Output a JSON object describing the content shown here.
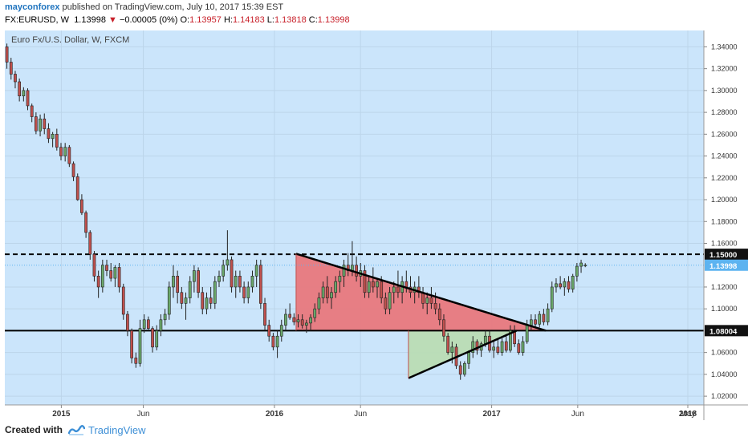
{
  "header": {
    "author": "mayconforex",
    "published_text": "published on TradingView.com, July 10, 2017 15:39 EST",
    "symbol": "FX:EURUSD, W",
    "last_price": "1.13998",
    "change_arrow": "▼",
    "change": "−0.00005 (0%)",
    "open_label": "O:",
    "open": "1.13957",
    "high_label": "H:",
    "high": "1.14183",
    "low_label": "L:",
    "low": "1.13818",
    "close_label": "C:",
    "close": "1.13998"
  },
  "footer": {
    "created_with": "Created with",
    "brand": "TradingView"
  },
  "colors": {
    "chart_bg": "#cbe5fb",
    "bull": "#6aa76a",
    "bear": "#c0504d",
    "red_fill": "#e8787d",
    "green_fill": "#b9dcb4",
    "level_label_bg": "#111111",
    "price_label_bg": "#5cb3f0",
    "down_red": "#c8202a"
  },
  "chart_data": {
    "type": "candlestick",
    "title": "Euro Fx/U.S. Dollar, W, FXCM",
    "x_ticks": [
      "2015",
      "Jun",
      "2016",
      "Jun",
      "2017",
      "Jun",
      "2018",
      "May"
    ],
    "x_ticks_bold": [
      "2015",
      "2016",
      "2017",
      "2018"
    ],
    "y_ticks": [
      "1.34000",
      "1.32000",
      "1.30000",
      "1.28000",
      "1.26000",
      "1.24000",
      "1.22000",
      "1.20000",
      "1.18000",
      "1.16000",
      "1.15000",
      "1.13998",
      "1.12000",
      "1.10000",
      "1.08004",
      "1.06000",
      "1.04000",
      "1.02000"
    ],
    "ylim": [
      1.012,
      1.355
    ],
    "x_range_weeks": [
      0,
      168
    ],
    "levels": [
      {
        "name": "resistance",
        "price": 1.15,
        "label": "1.15000",
        "style": "dashed"
      },
      {
        "name": "support",
        "price": 1.08004,
        "label": "1.08004",
        "style": "solid"
      },
      {
        "name": "last-price",
        "price": 1.13998,
        "label": "1.13998",
        "style": "dotted"
      }
    ],
    "triangles": [
      {
        "name": "descending-triangle",
        "fill": "red",
        "points": [
          [
            70,
            1.1505
          ],
          [
            130,
            1.08004
          ],
          [
            70,
            1.08004
          ]
        ]
      },
      {
        "name": "ascending-triangle",
        "fill": "green",
        "points": [
          [
            97,
            1.0365
          ],
          [
            123,
            1.08004
          ],
          [
            97,
            1.08004
          ]
        ]
      }
    ],
    "trendlines": [
      {
        "name": "upper-trendline",
        "from": [
          70,
          1.1505
        ],
        "to": [
          130,
          1.08004
        ]
      },
      {
        "name": "lower-trendline",
        "from": [
          97,
          1.0365
        ],
        "to": [
          123,
          1.08004
        ]
      }
    ],
    "candles": [
      {
        "o": 1.34,
        "h": 1.343,
        "l": 1.32,
        "c": 1.326
      },
      {
        "o": 1.326,
        "h": 1.33,
        "l": 1.31,
        "c": 1.315
      },
      {
        "o": 1.315,
        "h": 1.318,
        "l": 1.302,
        "c": 1.308
      },
      {
        "o": 1.308,
        "h": 1.311,
        "l": 1.29,
        "c": 1.295
      },
      {
        "o": 1.295,
        "h": 1.303,
        "l": 1.29,
        "c": 1.3
      },
      {
        "o": 1.3,
        "h": 1.302,
        "l": 1.282,
        "c": 1.286
      },
      {
        "o": 1.286,
        "h": 1.288,
        "l": 1.271,
        "c": 1.276
      },
      {
        "o": 1.276,
        "h": 1.28,
        "l": 1.26,
        "c": 1.263
      },
      {
        "o": 1.263,
        "h": 1.278,
        "l": 1.258,
        "c": 1.274
      },
      {
        "o": 1.274,
        "h": 1.279,
        "l": 1.26,
        "c": 1.265
      },
      {
        "o": 1.265,
        "h": 1.27,
        "l": 1.252,
        "c": 1.256
      },
      {
        "o": 1.256,
        "h": 1.262,
        "l": 1.248,
        "c": 1.26
      },
      {
        "o": 1.26,
        "h": 1.265,
        "l": 1.245,
        "c": 1.248
      },
      {
        "o": 1.248,
        "h": 1.252,
        "l": 1.236,
        "c": 1.24
      },
      {
        "o": 1.24,
        "h": 1.252,
        "l": 1.235,
        "c": 1.248
      },
      {
        "o": 1.248,
        "h": 1.25,
        "l": 1.23,
        "c": 1.233
      },
      {
        "o": 1.233,
        "h": 1.235,
        "l": 1.217,
        "c": 1.221
      },
      {
        "o": 1.221,
        "h": 1.224,
        "l": 1.199,
        "c": 1.2
      },
      {
        "o": 1.2,
        "h": 1.205,
        "l": 1.186,
        "c": 1.188
      },
      {
        "o": 1.188,
        "h": 1.19,
        "l": 1.165,
        "c": 1.17
      },
      {
        "o": 1.17,
        "h": 1.172,
        "l": 1.145,
        "c": 1.15
      },
      {
        "o": 1.15,
        "h": 1.153,
        "l": 1.125,
        "c": 1.13
      },
      {
        "o": 1.13,
        "h": 1.135,
        "l": 1.11,
        "c": 1.12
      },
      {
        "o": 1.12,
        "h": 1.145,
        "l": 1.115,
        "c": 1.14
      },
      {
        "o": 1.14,
        "h": 1.145,
        "l": 1.13,
        "c": 1.135
      },
      {
        "o": 1.135,
        "h": 1.142,
        "l": 1.125,
        "c": 1.128
      },
      {
        "o": 1.128,
        "h": 1.14,
        "l": 1.12,
        "c": 1.138
      },
      {
        "o": 1.138,
        "h": 1.142,
        "l": 1.115,
        "c": 1.12
      },
      {
        "o": 1.12,
        "h": 1.123,
        "l": 1.09,
        "c": 1.095
      },
      {
        "o": 1.095,
        "h": 1.098,
        "l": 1.075,
        "c": 1.08
      },
      {
        "o": 1.08,
        "h": 1.082,
        "l": 1.05,
        "c": 1.055
      },
      {
        "o": 1.055,
        "h": 1.06,
        "l": 1.046,
        "c": 1.05
      },
      {
        "o": 1.05,
        "h": 1.09,
        "l": 1.047,
        "c": 1.082
      },
      {
        "o": 1.082,
        "h": 1.095,
        "l": 1.078,
        "c": 1.09
      },
      {
        "o": 1.09,
        "h": 1.093,
        "l": 1.08,
        "c": 1.082
      },
      {
        "o": 1.082,
        "h": 1.084,
        "l": 1.06,
        "c": 1.065
      },
      {
        "o": 1.065,
        "h": 1.085,
        "l": 1.062,
        "c": 1.08
      },
      {
        "o": 1.08,
        "h": 1.095,
        "l": 1.075,
        "c": 1.09
      },
      {
        "o": 1.09,
        "h": 1.1,
        "l": 1.085,
        "c": 1.095
      },
      {
        "o": 1.095,
        "h": 1.125,
        "l": 1.09,
        "c": 1.12
      },
      {
        "o": 1.12,
        "h": 1.14,
        "l": 1.11,
        "c": 1.13
      },
      {
        "o": 1.13,
        "h": 1.135,
        "l": 1.105,
        "c": 1.115
      },
      {
        "o": 1.115,
        "h": 1.12,
        "l": 1.1,
        "c": 1.105
      },
      {
        "o": 1.105,
        "h": 1.115,
        "l": 1.09,
        "c": 1.11
      },
      {
        "o": 1.11,
        "h": 1.13,
        "l": 1.105,
        "c": 1.125
      },
      {
        "o": 1.125,
        "h": 1.14,
        "l": 1.115,
        "c": 1.135
      },
      {
        "o": 1.135,
        "h": 1.138,
        "l": 1.11,
        "c": 1.115
      },
      {
        "o": 1.115,
        "h": 1.12,
        "l": 1.095,
        "c": 1.1
      },
      {
        "o": 1.1,
        "h": 1.115,
        "l": 1.095,
        "c": 1.11
      },
      {
        "o": 1.11,
        "h": 1.12,
        "l": 1.1,
        "c": 1.105
      },
      {
        "o": 1.105,
        "h": 1.13,
        "l": 1.1,
        "c": 1.125
      },
      {
        "o": 1.125,
        "h": 1.135,
        "l": 1.12,
        "c": 1.13
      },
      {
        "o": 1.13,
        "h": 1.145,
        "l": 1.125,
        "c": 1.14
      },
      {
        "o": 1.14,
        "h": 1.172,
        "l": 1.135,
        "c": 1.145
      },
      {
        "o": 1.145,
        "h": 1.148,
        "l": 1.115,
        "c": 1.12
      },
      {
        "o": 1.12,
        "h": 1.135,
        "l": 1.11,
        "c": 1.13
      },
      {
        "o": 1.13,
        "h": 1.135,
        "l": 1.115,
        "c": 1.12
      },
      {
        "o": 1.12,
        "h": 1.125,
        "l": 1.105,
        "c": 1.11
      },
      {
        "o": 1.11,
        "h": 1.125,
        "l": 1.105,
        "c": 1.12
      },
      {
        "o": 1.12,
        "h": 1.135,
        "l": 1.115,
        "c": 1.13
      },
      {
        "o": 1.13,
        "h": 1.145,
        "l": 1.12,
        "c": 1.14
      },
      {
        "o": 1.14,
        "h": 1.145,
        "l": 1.1,
        "c": 1.105
      },
      {
        "o": 1.105,
        "h": 1.11,
        "l": 1.08,
        "c": 1.085
      },
      {
        "o": 1.085,
        "h": 1.09,
        "l": 1.07,
        "c": 1.075
      },
      {
        "o": 1.075,
        "h": 1.078,
        "l": 1.062,
        "c": 1.065
      },
      {
        "o": 1.065,
        "h": 1.08,
        "l": 1.055,
        "c": 1.075
      },
      {
        "o": 1.075,
        "h": 1.09,
        "l": 1.07,
        "c": 1.085
      },
      {
        "o": 1.085,
        "h": 1.1,
        "l": 1.08,
        "c": 1.095
      },
      {
        "o": 1.095,
        "h": 1.105,
        "l": 1.09,
        "c": 1.092
      },
      {
        "o": 1.092,
        "h": 1.096,
        "l": 1.085,
        "c": 1.088
      },
      {
        "o": 1.088,
        "h": 1.095,
        "l": 1.083,
        "c": 1.09
      },
      {
        "o": 1.09,
        "h": 1.095,
        "l": 1.082,
        "c": 1.085
      },
      {
        "o": 1.085,
        "h": 1.09,
        "l": 1.078,
        "c": 1.087
      },
      {
        "o": 1.087,
        "h": 1.095,
        "l": 1.08,
        "c": 1.092
      },
      {
        "o": 1.092,
        "h": 1.105,
        "l": 1.088,
        "c": 1.1
      },
      {
        "o": 1.1,
        "h": 1.115,
        "l": 1.095,
        "c": 1.11
      },
      {
        "o": 1.11,
        "h": 1.125,
        "l": 1.105,
        "c": 1.12
      },
      {
        "o": 1.12,
        "h": 1.13,
        "l": 1.105,
        "c": 1.11
      },
      {
        "o": 1.11,
        "h": 1.12,
        "l": 1.1,
        "c": 1.115
      },
      {
        "o": 1.115,
        "h": 1.13,
        "l": 1.11,
        "c": 1.125
      },
      {
        "o": 1.125,
        "h": 1.135,
        "l": 1.115,
        "c": 1.13
      },
      {
        "o": 1.13,
        "h": 1.145,
        "l": 1.12,
        "c": 1.14
      },
      {
        "o": 1.14,
        "h": 1.151,
        "l": 1.13,
        "c": 1.135
      },
      {
        "o": 1.135,
        "h": 1.162,
        "l": 1.13,
        "c": 1.14
      },
      {
        "o": 1.14,
        "h": 1.148,
        "l": 1.125,
        "c": 1.13
      },
      {
        "o": 1.13,
        "h": 1.142,
        "l": 1.12,
        "c": 1.135
      },
      {
        "o": 1.135,
        "h": 1.14,
        "l": 1.11,
        "c": 1.115
      },
      {
        "o": 1.115,
        "h": 1.13,
        "l": 1.11,
        "c": 1.125
      },
      {
        "o": 1.125,
        "h": 1.138,
        "l": 1.115,
        "c": 1.12
      },
      {
        "o": 1.12,
        "h": 1.128,
        "l": 1.11,
        "c": 1.125
      },
      {
        "o": 1.125,
        "h": 1.13,
        "l": 1.105,
        "c": 1.11
      },
      {
        "o": 1.11,
        "h": 1.115,
        "l": 1.095,
        "c": 1.1
      },
      {
        "o": 1.1,
        "h": 1.12,
        "l": 1.095,
        "c": 1.115
      },
      {
        "o": 1.115,
        "h": 1.125,
        "l": 1.105,
        "c": 1.12
      },
      {
        "o": 1.12,
        "h": 1.135,
        "l": 1.11,
        "c": 1.115
      },
      {
        "o": 1.115,
        "h": 1.13,
        "l": 1.105,
        "c": 1.125
      },
      {
        "o": 1.125,
        "h": 1.135,
        "l": 1.115,
        "c": 1.12
      },
      {
        "o": 1.12,
        "h": 1.13,
        "l": 1.11,
        "c": 1.115
      },
      {
        "o": 1.115,
        "h": 1.125,
        "l": 1.105,
        "c": 1.12
      },
      {
        "o": 1.12,
        "h": 1.13,
        "l": 1.11,
        "c": 1.115
      },
      {
        "o": 1.115,
        "h": 1.12,
        "l": 1.1,
        "c": 1.105
      },
      {
        "o": 1.105,
        "h": 1.115,
        "l": 1.095,
        "c": 1.11
      },
      {
        "o": 1.11,
        "h": 1.12,
        "l": 1.1,
        "c": 1.105
      },
      {
        "o": 1.105,
        "h": 1.115,
        "l": 1.095,
        "c": 1.1
      },
      {
        "o": 1.1,
        "h": 1.105,
        "l": 1.085,
        "c": 1.09
      },
      {
        "o": 1.09,
        "h": 1.095,
        "l": 1.07,
        "c": 1.075
      },
      {
        "o": 1.075,
        "h": 1.078,
        "l": 1.058,
        "c": 1.06
      },
      {
        "o": 1.06,
        "h": 1.07,
        "l": 1.05,
        "c": 1.065
      },
      {
        "o": 1.065,
        "h": 1.068,
        "l": 1.045,
        "c": 1.048
      },
      {
        "o": 1.048,
        "h": 1.052,
        "l": 1.035,
        "c": 1.04
      },
      {
        "o": 1.04,
        "h": 1.052,
        "l": 1.038,
        "c": 1.05
      },
      {
        "o": 1.05,
        "h": 1.062,
        "l": 1.045,
        "c": 1.06
      },
      {
        "o": 1.06,
        "h": 1.075,
        "l": 1.055,
        "c": 1.07
      },
      {
        "o": 1.07,
        "h": 1.072,
        "l": 1.058,
        "c": 1.062
      },
      {
        "o": 1.062,
        "h": 1.07,
        "l": 1.056,
        "c": 1.068
      },
      {
        "o": 1.068,
        "h": 1.08,
        "l": 1.065,
        "c": 1.075
      },
      {
        "o": 1.075,
        "h": 1.08,
        "l": 1.06,
        "c": 1.062
      },
      {
        "o": 1.062,
        "h": 1.07,
        "l": 1.055,
        "c": 1.065
      },
      {
        "o": 1.065,
        "h": 1.072,
        "l": 1.058,
        "c": 1.06
      },
      {
        "o": 1.06,
        "h": 1.073,
        "l": 1.057,
        "c": 1.07
      },
      {
        "o": 1.07,
        "h": 1.077,
        "l": 1.06,
        "c": 1.062
      },
      {
        "o": 1.062,
        "h": 1.085,
        "l": 1.06,
        "c": 1.08
      },
      {
        "o": 1.08,
        "h": 1.085,
        "l": 1.065,
        "c": 1.068
      },
      {
        "o": 1.068,
        "h": 1.072,
        "l": 1.058,
        "c": 1.06
      },
      {
        "o": 1.06,
        "h": 1.075,
        "l": 1.057,
        "c": 1.07
      },
      {
        "o": 1.07,
        "h": 1.09,
        "l": 1.068,
        "c": 1.085
      },
      {
        "o": 1.085,
        "h": 1.095,
        "l": 1.08,
        "c": 1.09
      },
      {
        "o": 1.09,
        "h": 1.095,
        "l": 1.082,
        "c": 1.086
      },
      {
        "o": 1.086,
        "h": 1.098,
        "l": 1.083,
        "c": 1.095
      },
      {
        "o": 1.095,
        "h": 1.1,
        "l": 1.085,
        "c": 1.088
      },
      {
        "o": 1.088,
        "h": 1.105,
        "l": 1.085,
        "c": 1.1
      },
      {
        "o": 1.1,
        "h": 1.125,
        "l": 1.097,
        "c": 1.12
      },
      {
        "o": 1.12,
        "h": 1.128,
        "l": 1.115,
        "c": 1.123
      },
      {
        "o": 1.123,
        "h": 1.13,
        "l": 1.118,
        "c": 1.12
      },
      {
        "o": 1.12,
        "h": 1.128,
        "l": 1.112,
        "c": 1.125
      },
      {
        "o": 1.125,
        "h": 1.13,
        "l": 1.115,
        "c": 1.118
      },
      {
        "o": 1.118,
        "h": 1.132,
        "l": 1.115,
        "c": 1.13
      },
      {
        "o": 1.13,
        "h": 1.142,
        "l": 1.125,
        "c": 1.139
      },
      {
        "o": 1.139,
        "h": 1.145,
        "l": 1.133,
        "c": 1.142
      },
      {
        "o": 1.1395,
        "h": 1.1418,
        "l": 1.1382,
        "c": 1.14
      }
    ]
  }
}
